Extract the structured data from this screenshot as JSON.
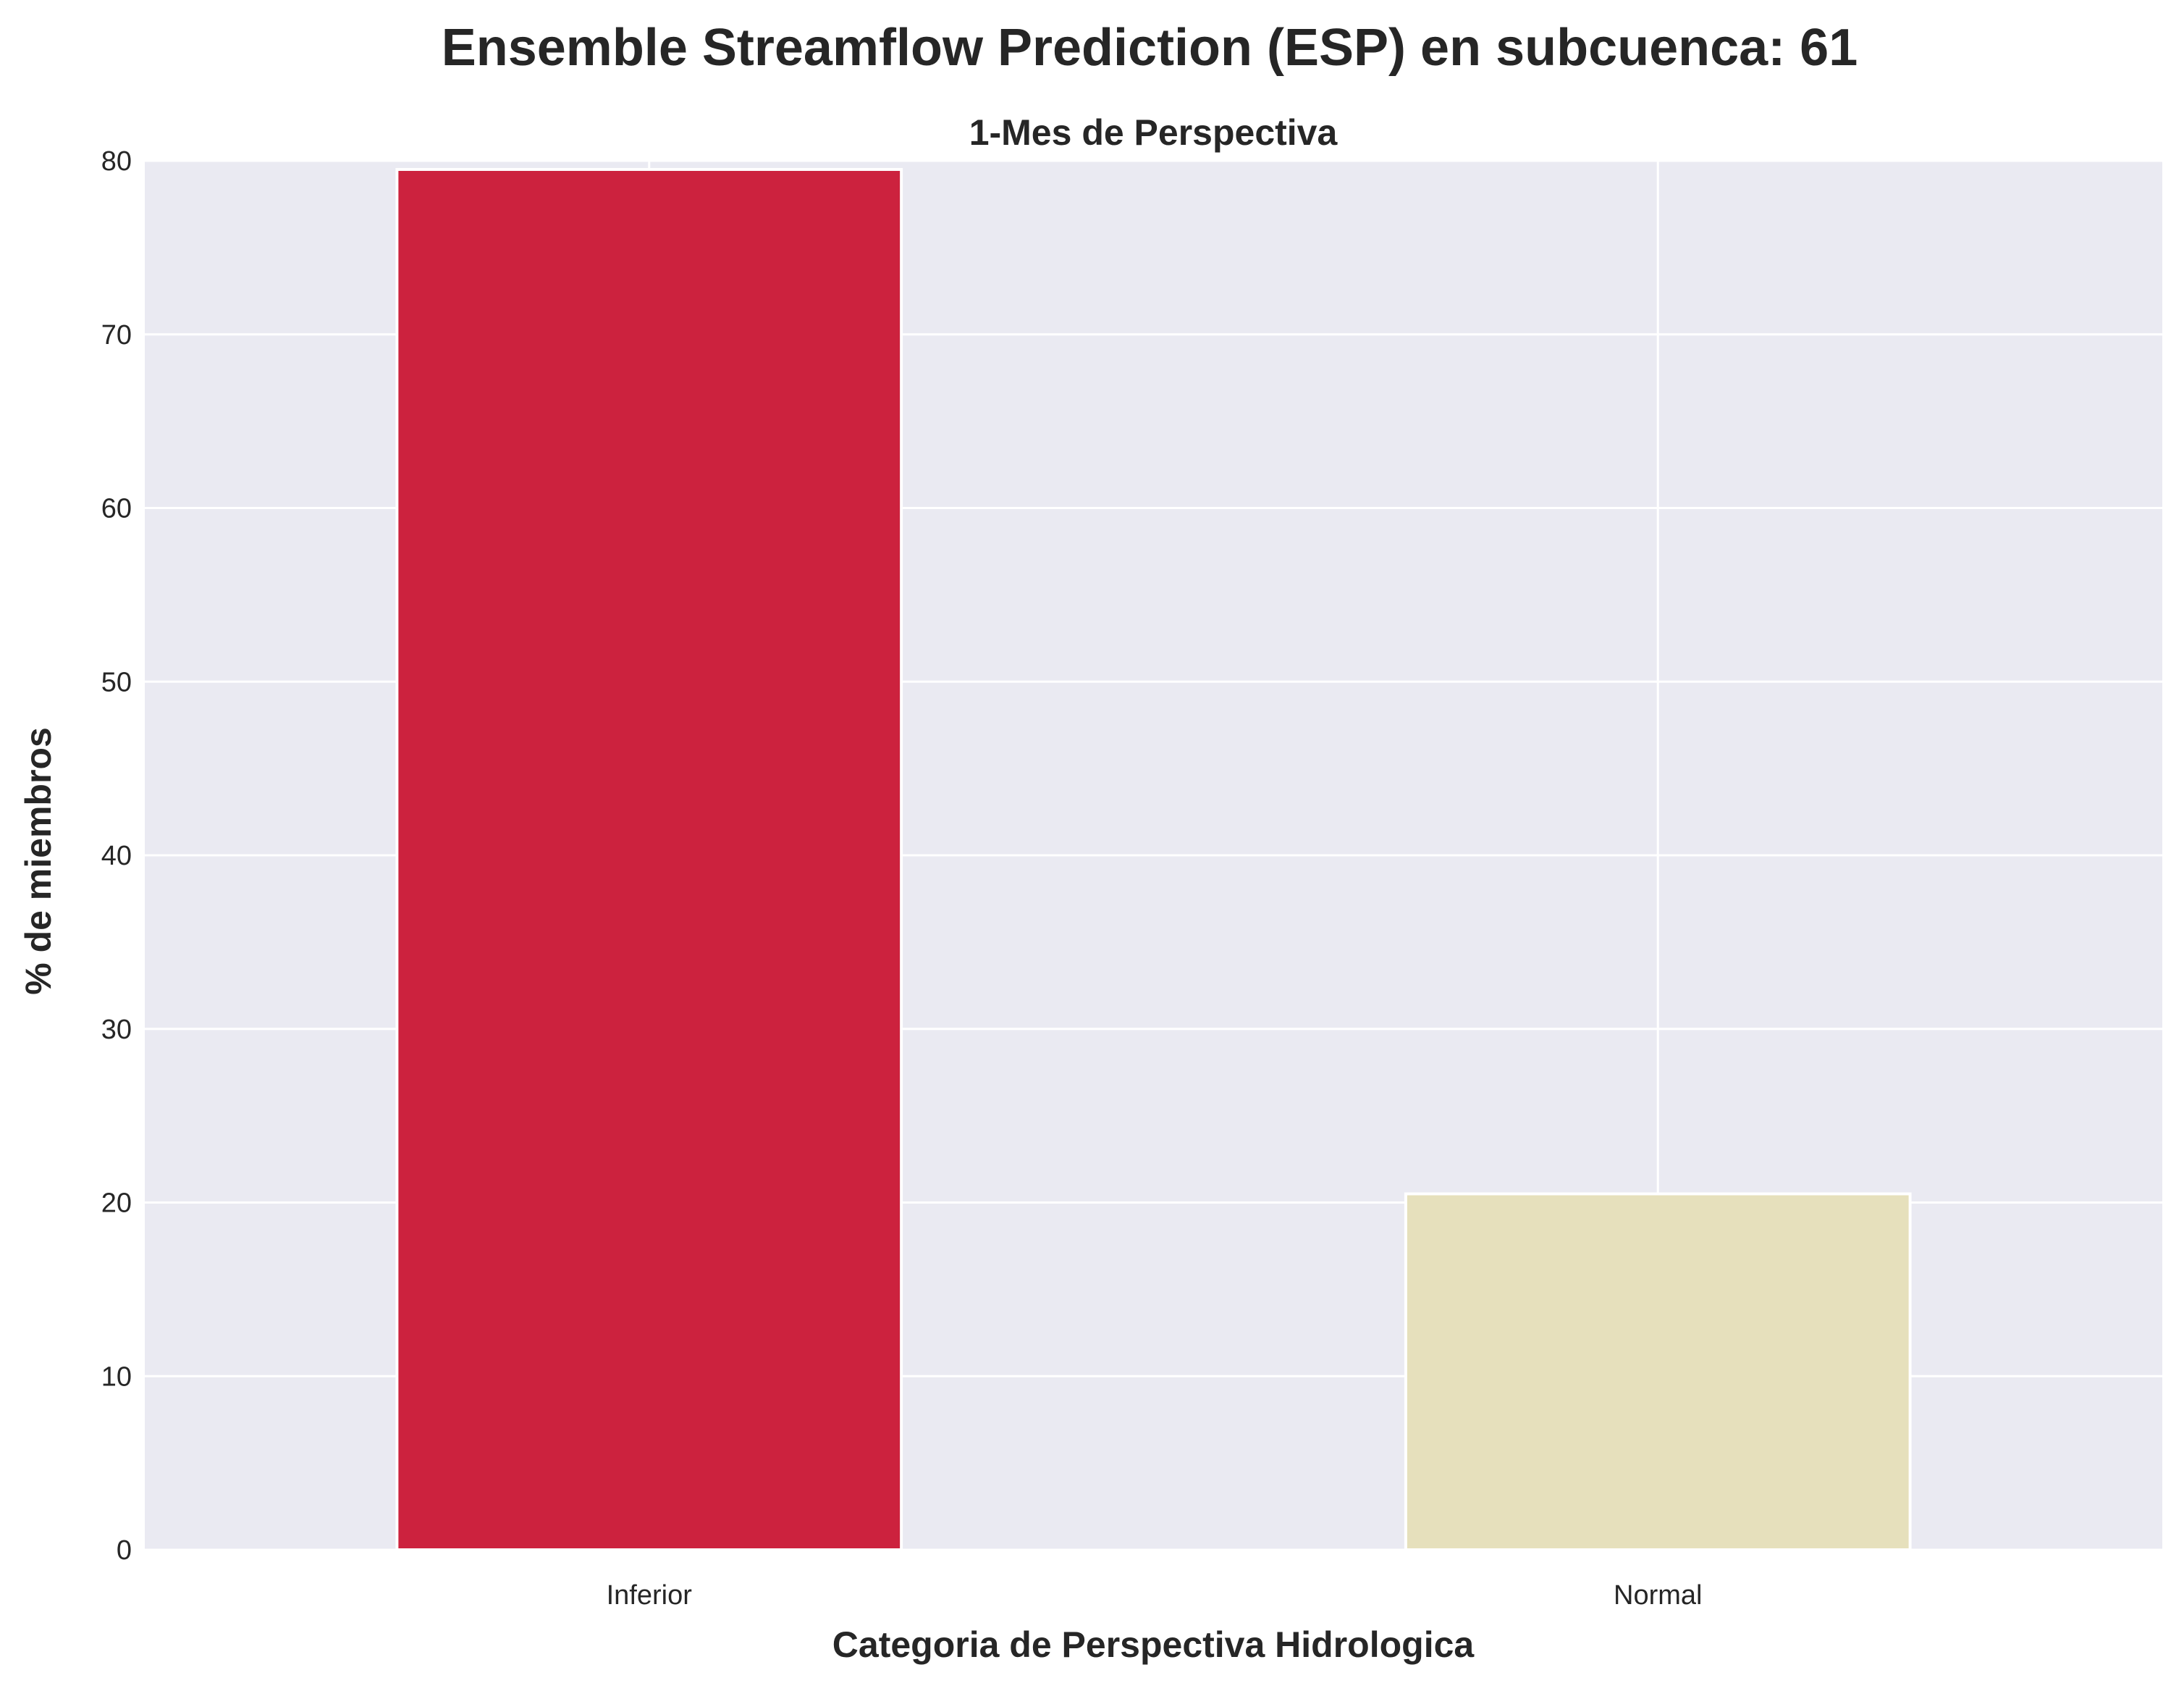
{
  "chart_data": {
    "type": "bar",
    "title": "Ensemble Streamflow Prediction (ESP) en subcuenca: 61",
    "subtitle": "1-Mes de Perspectiva",
    "xlabel": "Categoria de Perspectiva Hidrologica",
    "ylabel": "% de miembros",
    "categories": [
      "Inferior",
      "Normal"
    ],
    "values": [
      79.5,
      20.5
    ],
    "colors": [
      "#cc223e",
      "#e6e0bc"
    ],
    "ylim": [
      0,
      80
    ],
    "yticks": [
      "0",
      "10",
      "20",
      "30",
      "40",
      "50",
      "60",
      "70",
      "80"
    ],
    "grid": true,
    "background_color": "#eaeaf2",
    "grid_color": "#ffffff"
  }
}
